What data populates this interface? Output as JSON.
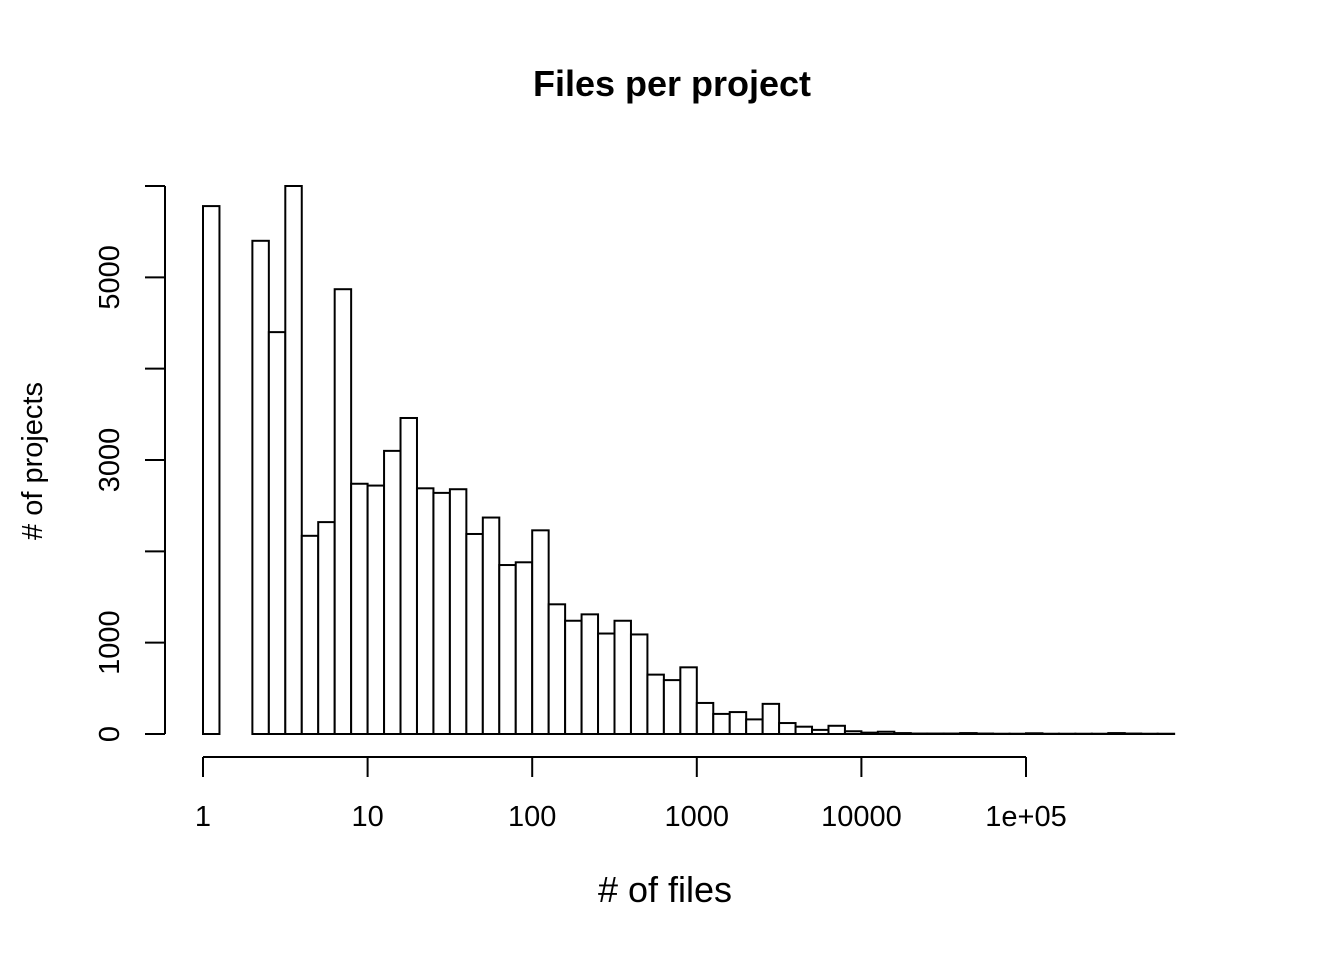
{
  "chart_data": {
    "type": "bar",
    "title": "Files per project",
    "xlabel": "# of files",
    "ylabel": "# of projects",
    "x_scale": "log10",
    "x_ticks": [
      1,
      10,
      100,
      1000,
      10000,
      100000
    ],
    "x_tick_labels": [
      "1",
      "10",
      "100",
      "1000",
      "10000",
      "1e+05"
    ],
    "y_ticks": [
      0,
      1000,
      2000,
      3000,
      4000,
      5000,
      6000
    ],
    "y_tick_labels": [
      "0",
      "1000",
      "",
      "3000",
      "",
      "5000",
      ""
    ],
    "xlim": [
      1,
      500000
    ],
    "ylim": [
      0,
      6000
    ],
    "bin_width_log10": 0.1,
    "bin_start_log10": 0.0,
    "values": [
      5780,
      0,
      0,
      5400,
      4400,
      6000,
      2170,
      2320,
      4870,
      2740,
      2720,
      3100,
      3460,
      2690,
      2640,
      2680,
      2190,
      2370,
      1850,
      1880,
      2230,
      1420,
      1240,
      1310,
      1100,
      1240,
      1090,
      650,
      590,
      730,
      340,
      220,
      240,
      160,
      330,
      120,
      80,
      45,
      90,
      30,
      15,
      25,
      10,
      5,
      5,
      5,
      10,
      5,
      3,
      3,
      8,
      3,
      3,
      3,
      3,
      10,
      5,
      3,
      3
    ],
    "grid": false,
    "legend": "none"
  }
}
